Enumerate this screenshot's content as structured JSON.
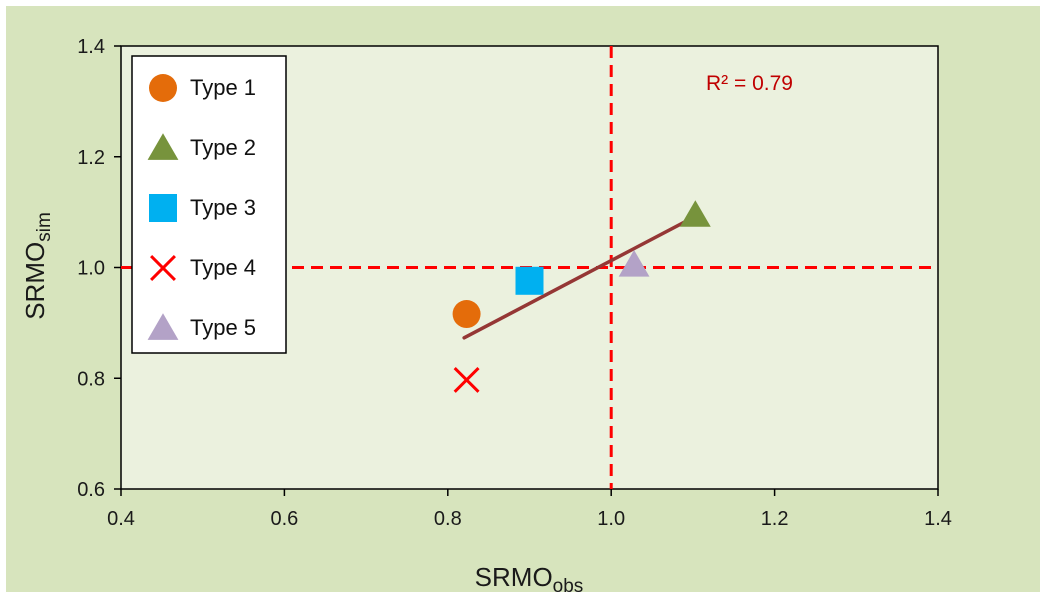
{
  "chart_data": {
    "type": "scatter",
    "xlabel": {
      "main": "SRMO",
      "sub": "obs"
    },
    "ylabel": {
      "main": "SRMO",
      "sub": "sim"
    },
    "xlim": [
      0.4,
      1.4
    ],
    "ylim": [
      0.6,
      1.4
    ],
    "xticks": [
      "0.4",
      "0.6",
      "0.8",
      "1.0",
      "1.2",
      "1.4"
    ],
    "yticks": [
      "0.6",
      "0.8",
      "1.0",
      "1.2",
      "1.4"
    ],
    "grid": false,
    "legend_position": "top-left",
    "series": [
      {
        "name": "Type 1",
        "marker": "circle",
        "color": "#e46c0a",
        "points": [
          [
            0.823,
            0.916
          ]
        ]
      },
      {
        "name": "Type 2",
        "marker": "triangle",
        "color": "#77933c",
        "points": [
          [
            1.103,
            1.095
          ]
        ]
      },
      {
        "name": "Type 3",
        "marker": "square",
        "color": "#00b0f0",
        "points": [
          [
            0.9,
            0.976
          ]
        ]
      },
      {
        "name": "Type 4",
        "marker": "x",
        "color": "#ff0000",
        "points": [
          [
            0.823,
            0.797
          ]
        ]
      },
      {
        "name": "Type 5",
        "marker": "triangle",
        "color": "#b3a2c7",
        "points": [
          [
            1.028,
            1.005
          ]
        ]
      }
    ],
    "trendline": {
      "x": [
        0.82,
        1.1
      ],
      "y": [
        0.873,
        1.09
      ],
      "color": "#953735"
    },
    "reference_lines": [
      {
        "axis": "x",
        "value": 1.0,
        "color": "#ff0000",
        "style": "dashed"
      },
      {
        "axis": "y",
        "value": 1.0,
        "color": "#ff0000",
        "style": "dashed"
      }
    ],
    "annotation": {
      "text": "R² = 0.79",
      "color": "#c00000"
    }
  }
}
